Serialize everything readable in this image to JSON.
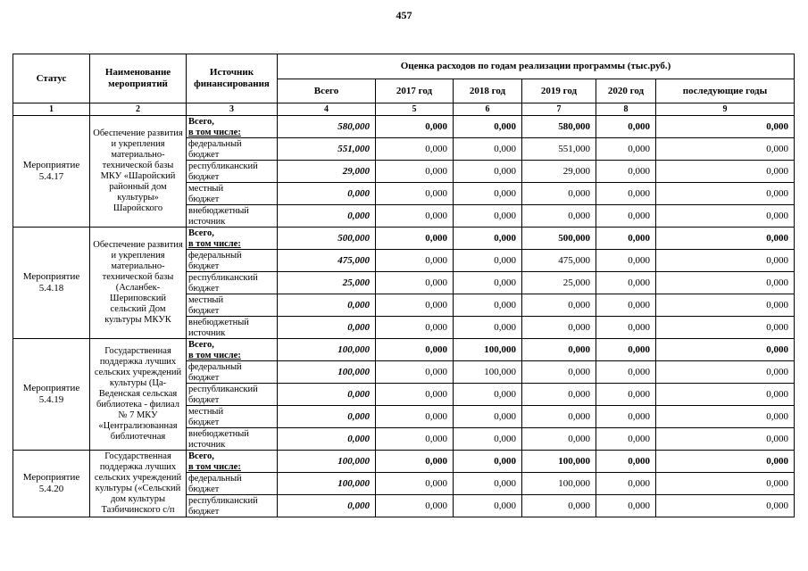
{
  "page": {
    "number": "457"
  },
  "table": {
    "header": {
      "status": "Статус",
      "name": "Наименование мероприятий",
      "source": "Источник финансирования",
      "costs": "Оценка расходов по годам реализации  программы (тыс.руб.)",
      "years": [
        "Всего",
        "2017 год",
        "2018 год",
        "2019 год",
        "2020 год",
        "последующие годы"
      ],
      "numbers": [
        "1",
        "2",
        "3",
        "4",
        "5",
        "6",
        "7",
        "8",
        "9"
      ]
    },
    "blocks": [
      {
        "status": "Мероприятие 5.4.17",
        "name": "Обеспечение развития и укрепления материально-технической базы МКУ «Шаройский районный дом культуры» Шаройского",
        "rows": [
          {
            "source": [
              "Всего,",
              "в том числе:"
            ],
            "values": [
              "580,000",
              "0,000",
              "0,000",
              "580,000",
              "0,000",
              "0,000"
            ]
          },
          {
            "source": [
              "федеральный",
              "бюджет"
            ],
            "values": [
              "551,000",
              "0,000",
              "0,000",
              "551,000",
              "0,000",
              "0,000"
            ]
          },
          {
            "source": [
              "республиканский",
              "бюджет"
            ],
            "values": [
              "29,000",
              "0,000",
              "0,000",
              "29,000",
              "0,000",
              "0,000"
            ]
          },
          {
            "source": [
              "местный",
              "бюджет"
            ],
            "values": [
              "0,000",
              "0,000",
              "0,000",
              "0,000",
              "0,000",
              "0,000"
            ]
          },
          {
            "source": [
              "внебюджетный",
              "источник"
            ],
            "values": [
              "0,000",
              "0,000",
              "0,000",
              "0,000",
              "0,000",
              "0,000"
            ]
          }
        ]
      },
      {
        "status": "Мероприятие 5.4.18",
        "name": "Обеспечение развития и укрепления материально-технической базы (Асланбек-Шериповский сельский Дом культуры МКУК",
        "rows": [
          {
            "source": [
              "Всего,",
              "в том числе:"
            ],
            "values": [
              "500,000",
              "0,000",
              "0,000",
              "500,000",
              "0,000",
              "0,000"
            ]
          },
          {
            "source": [
              "федеральный",
              "бюджет"
            ],
            "values": [
              "475,000",
              "0,000",
              "0,000",
              "475,000",
              "0,000",
              "0,000"
            ]
          },
          {
            "source": [
              "республиканский",
              "бюджет"
            ],
            "values": [
              "25,000",
              "0,000",
              "0,000",
              "25,000",
              "0,000",
              "0,000"
            ]
          },
          {
            "source": [
              "местный",
              "бюджет"
            ],
            "values": [
              "0,000",
              "0,000",
              "0,000",
              "0,000",
              "0,000",
              "0,000"
            ]
          },
          {
            "source": [
              "внебюджетный",
              "источник"
            ],
            "values": [
              "0,000",
              "0,000",
              "0,000",
              "0,000",
              "0,000",
              "0,000"
            ]
          }
        ]
      },
      {
        "status": "Мероприятие 5.4.19",
        "name": "Государственная поддержка лучших сельских учреждений культуры (Ца-Веденская сельская библиотека - филиал № 7 МКУ «Централизованная библиотечная",
        "rows": [
          {
            "source": [
              "Всего,",
              "в том числе:"
            ],
            "values": [
              "100,000",
              "0,000",
              "100,000",
              "0,000",
              "0,000",
              "0,000"
            ]
          },
          {
            "source": [
              "федеральный",
              "бюджет"
            ],
            "values": [
              "100,000",
              "0,000",
              "100,000",
              "0,000",
              "0,000",
              "0,000"
            ]
          },
          {
            "source": [
              "республиканский",
              "бюджет"
            ],
            "values": [
              "0,000",
              "0,000",
              "0,000",
              "0,000",
              "0,000",
              "0,000"
            ]
          },
          {
            "source": [
              "местный",
              "бюджет"
            ],
            "values": [
              "0,000",
              "0,000",
              "0,000",
              "0,000",
              "0,000",
              "0,000"
            ]
          },
          {
            "source": [
              "внебюджетный",
              "источник"
            ],
            "values": [
              "0,000",
              "0,000",
              "0,000",
              "0,000",
              "0,000",
              "0,000"
            ]
          }
        ]
      },
      {
        "status": "Мероприятие 5.4.20",
        "name": "Государственная поддержка лучших сельских учреждений культуры («Сельский дом культуры Тазбичинского с/п",
        "rows": [
          {
            "source": [
              "Всего,",
              "в том числе:"
            ],
            "values": [
              "100,000",
              "0,000",
              "0,000",
              "100,000",
              "0,000",
              "0,000"
            ]
          },
          {
            "source": [
              "федеральный",
              "бюджет"
            ],
            "values": [
              "100,000",
              "0,000",
              "0,000",
              "100,000",
              "0,000",
              "0,000"
            ]
          },
          {
            "source": [
              "республиканский",
              "бюджет"
            ],
            "values": [
              "0,000",
              "0,000",
              "0,000",
              "0,000",
              "0,000",
              "0,000"
            ]
          }
        ]
      }
    ]
  }
}
